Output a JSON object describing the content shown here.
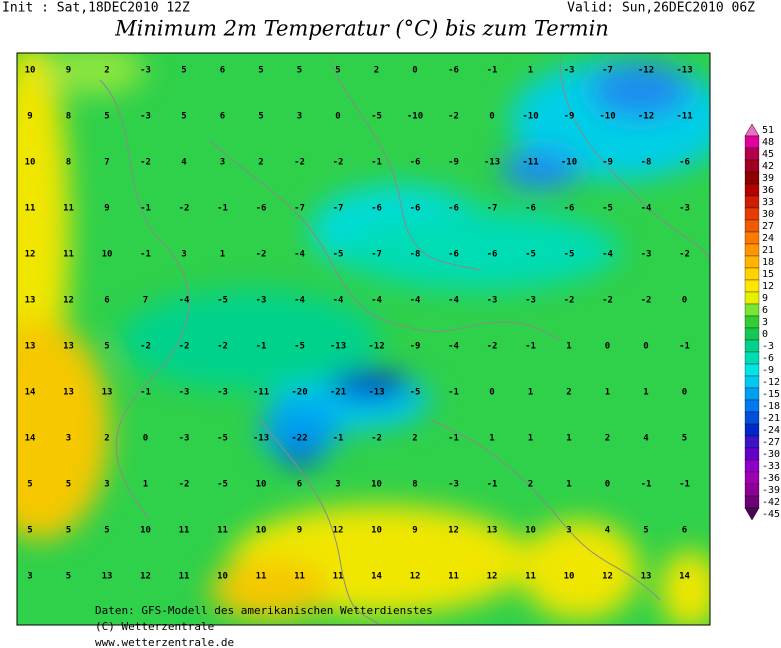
{
  "header": {
    "init": "Init : Sat,18DEC2010 12Z",
    "valid": "Valid: Sun,26DEC2010 06Z",
    "title": "Minimum 2m Temperatur (°C) bis zum Termin"
  },
  "map": {
    "values": [
      [
        10,
        9,
        2,
        -3,
        5,
        6,
        5,
        5,
        5,
        2,
        0,
        -6,
        -1,
        1,
        -3,
        -7,
        -12,
        -13
      ],
      [
        9,
        8,
        5,
        -3,
        5,
        6,
        5,
        3,
        0,
        -5,
        -10,
        -2,
        0,
        -10,
        -9,
        -10,
        -12,
        -11
      ],
      [
        10,
        8,
        7,
        -2,
        4,
        3,
        2,
        -2,
        -2,
        -1,
        -6,
        -9,
        -13,
        -11,
        -10,
        -9,
        -8,
        -6
      ],
      [
        11,
        11,
        9,
        -1,
        -2,
        -1,
        -6,
        -7,
        -7,
        -6,
        -6,
        -6,
        -7,
        -6,
        -6,
        -5,
        -4,
        -3
      ],
      [
        12,
        11,
        10,
        -1,
        3,
        1,
        -2,
        -4,
        -5,
        -7,
        -8,
        -6,
        -6,
        -5,
        -5,
        -4,
        -3,
        -2
      ],
      [
        13,
        12,
        6,
        7,
        -4,
        -5,
        -3,
        -4,
        -4,
        -4,
        -4,
        -4,
        -3,
        -3,
        -2,
        -2,
        -2,
        0
      ],
      [
        13,
        13,
        5,
        -2,
        -2,
        -2,
        -1,
        -5,
        -13,
        -12,
        -9,
        -4,
        -2,
        -1,
        1,
        0,
        0,
        -1
      ],
      [
        14,
        13,
        13,
        -1,
        -3,
        -3,
        -11,
        -20,
        -21,
        -13,
        -5,
        -1,
        0,
        1,
        2,
        1,
        1,
        0
      ],
      [
        14,
        3,
        2,
        0,
        -3,
        -5,
        -13,
        -22,
        -1,
        -2,
        2,
        -1,
        1,
        1,
        1,
        2,
        4,
        5
      ],
      [
        5,
        5,
        3,
        1,
        -2,
        -5,
        10,
        6,
        3,
        10,
        8,
        -3,
        -1,
        2,
        1,
        0,
        -1,
        -1
      ],
      [
        5,
        5,
        5,
        10,
        11,
        11,
        10,
        9,
        12,
        10,
        9,
        12,
        13,
        10,
        3,
        4,
        5,
        6
      ],
      [
        3,
        5,
        13,
        12,
        11,
        10,
        11,
        11,
        11,
        14,
        12,
        11,
        12,
        11,
        10,
        12,
        13,
        14
      ]
    ]
  },
  "legend": {
    "labels": [
      51,
      48,
      45,
      42,
      39,
      36,
      33,
      30,
      27,
      24,
      21,
      18,
      15,
      12,
      9,
      6,
      3,
      0,
      -3,
      -6,
      -9,
      -12,
      -15,
      -18,
      -21,
      -24,
      -27,
      -30,
      -33,
      -36,
      -39,
      -42,
      -45
    ],
    "colors": [
      "#f070c0",
      "#e0009e",
      "#b4004c",
      "#a00020",
      "#8c0000",
      "#b40000",
      "#d21e00",
      "#e63c00",
      "#f05a00",
      "#ff7800",
      "#ff9600",
      "#ffb400",
      "#ffd200",
      "#ffe600",
      "#e6f000",
      "#78e632",
      "#32cd32",
      "#14c850",
      "#00d28c",
      "#00dcb4",
      "#00e6e6",
      "#00c8f0",
      "#00a0f0",
      "#0078f0",
      "#0050dc",
      "#0028c8",
      "#3c14c8",
      "#6400c8",
      "#8c00c8",
      "#a000b4",
      "#8c0096",
      "#6e0078",
      "#50005a"
    ]
  },
  "footer": {
    "lines": [
      "Daten: GFS-Modell des amerikanischen Wetterdienstes",
      "(C) Wetterzentrale",
      "www.wetterzentrale.de"
    ]
  }
}
